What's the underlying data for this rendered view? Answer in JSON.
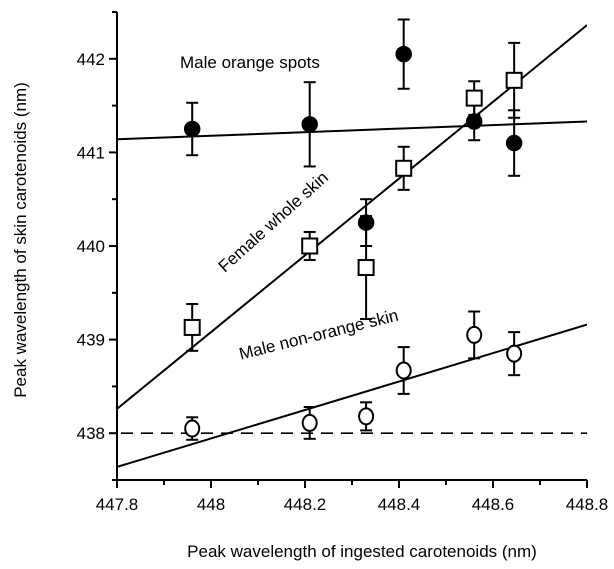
{
  "chart_data": {
    "type": "scatter",
    "xlabel": "Peak wavelength of ingested carotenoids (nm)",
    "ylabel": "Peak wavelength of skin carotenoids (nm)",
    "xlim": [
      447.8,
      448.8
    ],
    "ylim": [
      437.5,
      442.5
    ],
    "x_ticks": [
      "447.8",
      "448",
      "448.2",
      "448.4",
      "448.6",
      "448.8"
    ],
    "x_tick_values": [
      447.8,
      448.0,
      448.2,
      448.4,
      448.6,
      448.8
    ],
    "y_ticks": [
      "438",
      "439",
      "440",
      "441",
      "442"
    ],
    "y_tick_values": [
      438,
      439,
      440,
      441,
      442
    ],
    "grid": false,
    "series": [
      {
        "name": "Male orange spots",
        "marker": "filled-circle",
        "points": [
          {
            "x": 447.96,
            "y": 441.25,
            "err": 0.28
          },
          {
            "x": 448.21,
            "y": 441.3,
            "err": 0.45
          },
          {
            "x": 448.33,
            "y": 440.25,
            "err": 0.25
          },
          {
            "x": 448.41,
            "y": 442.05,
            "err": 0.37
          },
          {
            "x": 448.56,
            "y": 441.33,
            "err": 0.2
          },
          {
            "x": 448.645,
            "y": 441.1,
            "err": 0.35
          }
        ],
        "fit": {
          "x": [
            447.8,
            448.8
          ],
          "y": [
            441.14,
            441.33
          ]
        }
      },
      {
        "name": "Female whole skin",
        "marker": "open-square",
        "points": [
          {
            "x": 447.96,
            "y": 439.13,
            "err": 0.25
          },
          {
            "x": 448.21,
            "y": 440.0,
            "err": 0.15
          },
          {
            "x": 448.33,
            "y": 439.77,
            "err": 0.55
          },
          {
            "x": 448.41,
            "y": 440.83,
            "err": 0.23
          },
          {
            "x": 448.56,
            "y": 441.58,
            "err": 0.18
          },
          {
            "x": 448.645,
            "y": 441.77,
            "err": 0.4
          }
        ],
        "fit": {
          "x": [
            447.8,
            448.8
          ],
          "y": [
            438.26,
            442.36
          ]
        }
      },
      {
        "name": "Male non-orange skin",
        "marker": "open-circle",
        "points": [
          {
            "x": 447.96,
            "y": 438.05,
            "err": 0.12
          },
          {
            "x": 448.21,
            "y": 438.11,
            "err": 0.17
          },
          {
            "x": 448.33,
            "y": 438.18,
            "err": 0.15
          },
          {
            "x": 448.41,
            "y": 438.67,
            "err": 0.25
          },
          {
            "x": 448.56,
            "y": 439.05,
            "err": 0.25
          },
          {
            "x": 448.645,
            "y": 438.85,
            "err": 0.23
          }
        ],
        "fit": {
          "x": [
            447.8,
            448.8
          ],
          "y": [
            437.64,
            439.16
          ]
        }
      }
    ],
    "reference_line": {
      "y": 438.0,
      "style": "dashed"
    }
  }
}
